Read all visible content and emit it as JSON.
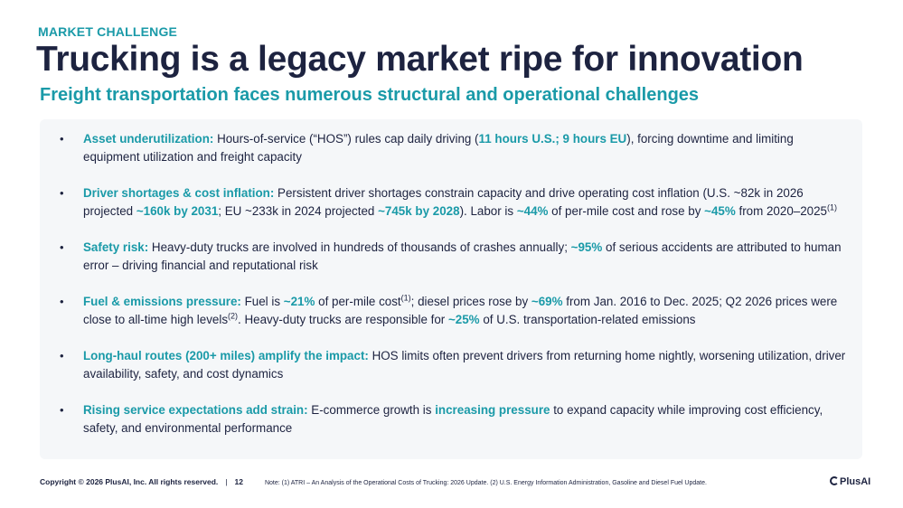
{
  "kicker": "MARKET CHALLENGE",
  "title": "Trucking is a legacy market ripe for innovation",
  "subtitle": "Freight transportation faces numerous structural and operational challenges",
  "bullets": [
    {
      "lead": "Asset underutilization:",
      "t1": " Hours-of-service (“HOS”) rules cap daily driving (",
      "h1": "11 hours U.S.; 9 hours EU",
      "t2": "), forcing downtime and limiting equipment utilization and freight capacity"
    },
    {
      "lead": "Driver shortages & cost inflation:",
      "t1": " Persistent driver shortages constrain capacity and drive operating cost inflation (U.S. ~82k in 2026 projected ",
      "h1": "~160k by 2031",
      "t2": "; EU ~233k in 2024 projected ",
      "h2": "~745k by 2028",
      "t3": "). Labor is ",
      "h3": "~44%",
      "t4": " of per-mile cost and rose by ",
      "h4": "~45%",
      "t5": " from 2020–2025",
      "sup": "(1)"
    },
    {
      "lead": "Safety risk:",
      "t1": " Heavy-duty trucks are involved in hundreds of thousands of crashes annually; ",
      "h1": "~95%",
      "t2": " of serious accidents are attributed to human error – driving financial and reputational risk"
    },
    {
      "lead": "Fuel & emissions pressure:",
      "t1": " Fuel is ",
      "h1": "~21%",
      "t2": " of per-mile cost",
      "sup1": "(1)",
      "t3": "; diesel prices rose by ",
      "h2": "~69%",
      "t4": " from Jan. 2016 to Dec. 2025; Q2 2026 prices were close to all-time high levels",
      "sup2": "(2)",
      "t5": ". Heavy-duty trucks are responsible for ",
      "h3": "~25%",
      "t6": " of U.S. transportation-related emissions"
    },
    {
      "lead": "Long-haul routes (200+ miles) amplify the impact:",
      "t1": " HOS limits often prevent drivers from returning home nightly, worsening utilization, driver availability, safety, and cost dynamics"
    },
    {
      "lead": "Rising service expectations add strain:",
      "t1": " E-commerce growth is ",
      "h1": "increasing pressure",
      "t2": " to expand capacity while improving cost efficiency, safety, and environmental performance"
    }
  ],
  "footer": {
    "copyright": "Copyright © 2026 PlusAI, Inc. All rights reserved.",
    "separator": "|",
    "page": "12",
    "note": "Note: (1) ATRI – An Analysis of the Operational Costs of Trucking: 2026 Update. (2) U.S. Energy Information Administration, Gasoline and Diesel Fuel Update."
  },
  "logo": "PlusAI",
  "colors": {
    "accent": "#1a9aa8",
    "text": "#1d2340",
    "panel": "#f5f7f9"
  }
}
